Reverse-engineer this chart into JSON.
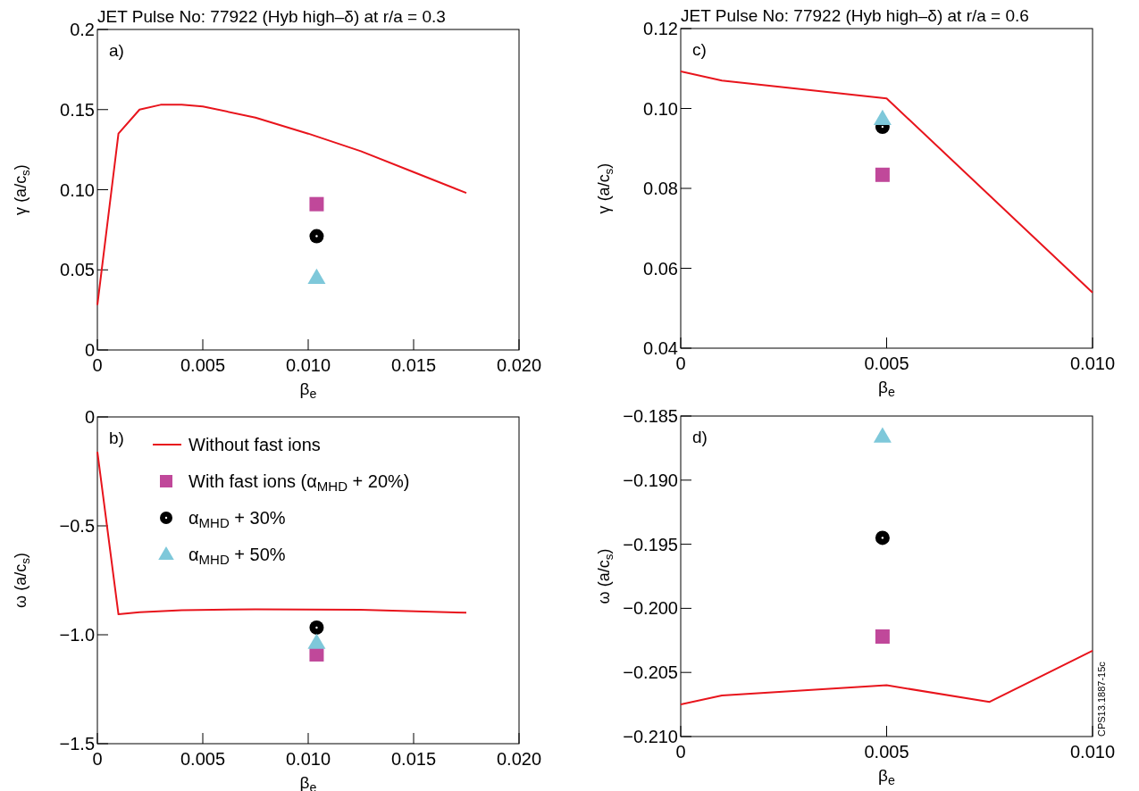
{
  "chart_data": [
    {
      "type": "line",
      "title": "JET Pulse No: 77922 (Hyb high–δ) at r/a = 0.3",
      "xlabel": "β$_{e}$",
      "ylabel": "γ (a/c$_{s}$)",
      "annotations": [
        "a)"
      ],
      "xlim": [
        0,
        0.02
      ],
      "xticks": [
        {
          "value": 0,
          "label": "0"
        },
        {
          "value": 0.005,
          "label": "0.005"
        },
        {
          "value": 0.01,
          "label": "0.010"
        },
        {
          "value": 0.015,
          "label": "0.015"
        },
        {
          "value": 0.02,
          "label": "0.020"
        }
      ],
      "ylim": [
        0,
        0.2
      ],
      "yticks": [
        {
          "value": 0,
          "label": "0"
        },
        0.05,
        {
          "value": 0.1,
          "label": "0.10"
        },
        0.15,
        0.2
      ],
      "legend": false,
      "series": [
        {
          "color": "#e8141c",
          "marker": "none",
          "x": [
            0,
            0.001,
            0.002,
            0.003,
            0.004,
            0.005,
            0.0075,
            0.01,
            0.0125,
            0.015,
            0.0175
          ],
          "values": [
            0.028,
            0.135,
            0.15,
            0.153,
            0.153,
            0.152,
            0.145,
            0.135,
            0.124,
            0.111,
            0.098
          ]
        },
        {
          "type": "scatter",
          "color": "#c0489a",
          "marker": "square",
          "x": [
            0.0104
          ],
          "values": [
            0.091
          ]
        },
        {
          "type": "scatter",
          "color": "#000000",
          "marker": "circle",
          "x": [
            0.0104
          ],
          "values": [
            0.071
          ]
        },
        {
          "type": "scatter",
          "color": "#7ec8da",
          "marker": "triangle",
          "x": [
            0.0104
          ],
          "values": [
            0.045
          ]
        }
      ]
    },
    {
      "type": "line",
      "title": "JET Pulse No: 77922 (Hyb high–δ) at r/a = 0.6",
      "xlabel": "β$_{e}$",
      "ylabel": "γ (a/c$_{s}$)",
      "annotations": [
        "c)"
      ],
      "xlim": [
        0,
        0.01
      ],
      "xticks": [
        {
          "value": 0,
          "label": "0"
        },
        {
          "value": 0.005,
          "label": "0.005"
        },
        {
          "value": 0.01,
          "label": "0.010"
        }
      ],
      "ylim": [
        0.04,
        0.12
      ],
      "yticks": [
        0.04,
        0.06,
        0.08,
        {
          "value": 0.1,
          "label": "0.10"
        },
        0.12
      ],
      "legend": false,
      "series": [
        {
          "color": "#e8141c",
          "marker": "none",
          "x": [
            0,
            0.001,
            0.005,
            0.0075,
            0.01
          ],
          "values": [
            0.1093,
            0.107,
            0.1025,
            0.0782,
            0.0539
          ]
        },
        {
          "type": "scatter",
          "color": "#c0489a",
          "marker": "square",
          "x": [
            0.0049
          ],
          "values": [
            0.0834
          ]
        },
        {
          "type": "scatter",
          "color": "#000000",
          "marker": "circle",
          "x": [
            0.0049
          ],
          "values": [
            0.0954
          ]
        },
        {
          "type": "scatter",
          "color": "#7ec8da",
          "marker": "triangle",
          "x": [
            0.0049
          ],
          "values": [
            0.0974
          ]
        }
      ]
    },
    {
      "type": "line",
      "xlabel": "β$_{e}$",
      "ylabel": "ω (a/c$_{s}$)",
      "annotations": [
        "b)"
      ],
      "xlim": [
        0,
        0.02
      ],
      "xticks": [
        {
          "value": 0,
          "label": "0"
        },
        {
          "value": 0.005,
          "label": "0.005"
        },
        {
          "value": 0.01,
          "label": "0.010"
        },
        {
          "value": 0.015,
          "label": "0.015"
        },
        {
          "value": 0.02,
          "label": "0.020"
        }
      ],
      "ylim": [
        -1.5,
        0
      ],
      "yticks": [
        {
          "value": -1.5,
          "label": "−1.5"
        },
        {
          "value": -1,
          "label": "−1.0"
        },
        {
          "value": -0.5,
          "label": "−0.5"
        },
        {
          "value": 0,
          "label": "0"
        }
      ],
      "legend": "top",
      "series": [
        {
          "name": "Without fast ions",
          "color": "#e8141c",
          "marker": "none",
          "x": [
            0,
            0.001,
            0.002,
            0.004,
            0.0075,
            0.0125,
            0.0175
          ],
          "values": [
            -0.16,
            -0.906,
            -0.897,
            -0.887,
            -0.883,
            -0.885,
            -0.899
          ]
        },
        {
          "type": "scatter",
          "name": "With fast ions (α$_{MHD}$ + 20%)",
          "color": "#c0489a",
          "marker": "square",
          "x": [
            0.0104
          ],
          "values": [
            -1.09
          ]
        },
        {
          "type": "scatter",
          "name": "α$_{MHD}$ + 30%",
          "color": "#000000",
          "marker": "circle",
          "x": [
            0.0104
          ],
          "values": [
            -0.967
          ]
        },
        {
          "type": "scatter",
          "name": "α$_{MHD}$ + 50%",
          "color": "#7ec8da",
          "marker": "triangle",
          "x": [
            0.0104
          ],
          "values": [
            -1.037
          ]
        }
      ]
    },
    {
      "type": "line",
      "xlabel": "β$_{e}$",
      "ylabel": "ω (a/c$_{s}$)",
      "annotations": [
        "d)",
        "CPS13.1887-15c"
      ],
      "xlim": [
        0,
        0.01
      ],
      "xticks": [
        {
          "value": 0,
          "label": "0"
        },
        {
          "value": 0.005,
          "label": "0.005"
        },
        {
          "value": 0.01,
          "label": "0.010"
        }
      ],
      "ylim": [
        -0.21,
        -0.185
      ],
      "yticks": [
        {
          "value": -0.21,
          "label": "−0.210"
        },
        {
          "value": -0.205,
          "label": "−0.205"
        },
        {
          "value": -0.2,
          "label": "−0.200"
        },
        {
          "value": -0.195,
          "label": "−0.195"
        },
        {
          "value": -0.19,
          "label": "−0.190"
        },
        {
          "value": -0.185,
          "label": "−0.185"
        }
      ],
      "legend": false,
      "series": [
        {
          "color": "#e8141c",
          "marker": "none",
          "x": [
            0,
            0.001,
            0.005,
            0.0075,
            0.01
          ],
          "values": [
            -0.2075,
            -0.2068,
            -0.206,
            -0.2073,
            -0.2033
          ]
        },
        {
          "type": "scatter",
          "color": "#c0489a",
          "marker": "square",
          "x": [
            0.0049
          ],
          "values": [
            -0.2022
          ]
        },
        {
          "type": "scatter",
          "color": "#000000",
          "marker": "circle",
          "x": [
            0.0049
          ],
          "values": [
            -0.1945
          ]
        },
        {
          "type": "scatter",
          "color": "#7ec8da",
          "marker": "triangle",
          "x": [
            0.0049
          ],
          "values": [
            -0.1866
          ]
        }
      ]
    }
  ]
}
